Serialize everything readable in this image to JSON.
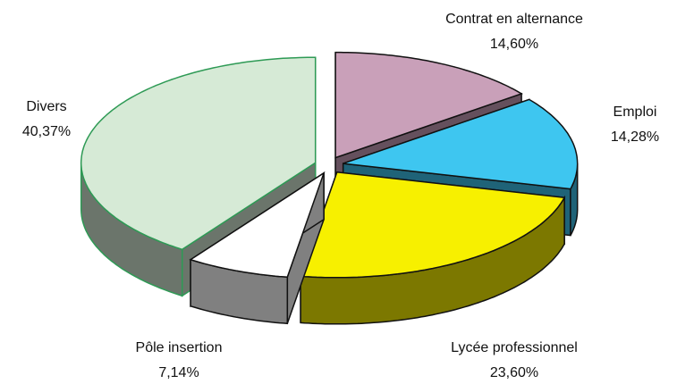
{
  "chart_data": {
    "type": "pie3d",
    "categories": [
      "Contrat en alternance",
      "Emploi",
      "Lycée professionnel",
      "Pôle insertion",
      "Divers"
    ],
    "values": [
      14.6,
      14.28,
      23.6,
      7.14,
      40.37
    ],
    "value_labels": [
      "14,60%",
      "14,28%",
      "23,60%",
      "7,14%",
      "40,37%"
    ],
    "colors": [
      "#c9a0b9",
      "#3ec6f0",
      "#f7f000",
      "#ffffff",
      "#d6ead6"
    ]
  }
}
